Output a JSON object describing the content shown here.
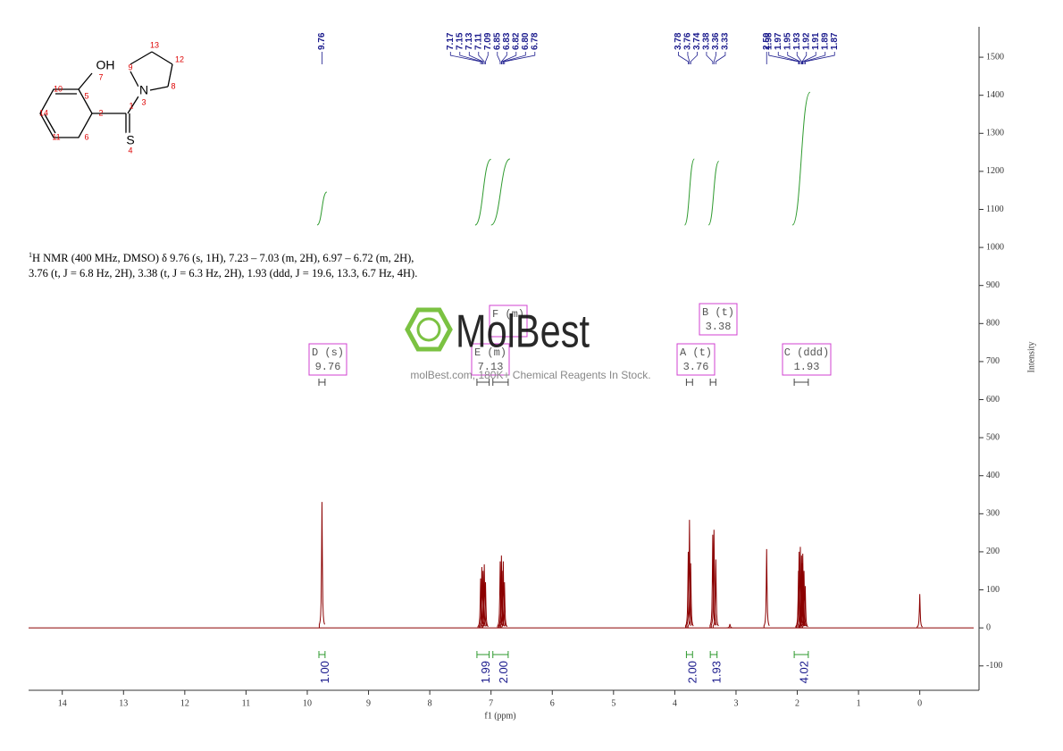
{
  "chart_data": {
    "type": "nmr",
    "xlabel": "f1 (ppm)",
    "ylabel": "Intensity",
    "xlim": [
      14.55,
      -0.88
    ],
    "xticks": [
      14,
      13,
      12,
      11,
      10,
      9,
      8,
      7,
      6,
      5,
      4,
      3,
      2,
      1,
      0
    ],
    "ylim": [
      -164,
      1580
    ],
    "yticks": [
      -100,
      0,
      100,
      200,
      300,
      400,
      500,
      600,
      700,
      800,
      900,
      1000,
      1100,
      1200,
      1300,
      1400,
      1500
    ],
    "color": "#8b0000",
    "peaks": {
      "x": [
        9.76,
        7.17,
        7.15,
        7.13,
        7.11,
        7.09,
        6.85,
        6.83,
        6.82,
        6.8,
        6.78,
        3.78,
        3.76,
        3.74,
        3.38,
        3.36,
        3.33,
        3.1,
        2.5,
        1.98,
        1.97,
        1.95,
        1.93,
        1.92,
        1.91,
        1.89,
        1.87,
        0.0
      ],
      "labels": [
        "9.76",
        "7.17",
        "7.15",
        "7.13",
        "7.11",
        "7.09",
        "6.85",
        "6.83",
        "6.82",
        "6.80",
        "6.78",
        "3.78",
        "3.76",
        "3.74",
        "3.38",
        "3.36",
        "3.33",
        null,
        "2.50",
        "1.98",
        "1.97",
        "1.95",
        "1.93",
        "1.92",
        "1.91",
        "1.89",
        "1.87",
        null
      ],
      "values": [
        331,
        130,
        160,
        150,
        167,
        120,
        175,
        190,
        150,
        175,
        120,
        200,
        284,
        170,
        245,
        258,
        180,
        10,
        207,
        150,
        200,
        213,
        190,
        170,
        195,
        150,
        110,
        89
      ]
    },
    "integrals": [
      {
        "range": [
          9.81,
          9.71
        ],
        "value": 1.0,
        "label": "1.00"
      },
      {
        "range": [
          7.23,
          7.03
        ],
        "value": 1.99,
        "label": "1.99"
      },
      {
        "range": [
          6.97,
          6.72
        ],
        "value": 2.0,
        "label": "2.00"
      },
      {
        "range": [
          3.81,
          3.71
        ],
        "value": 2.0,
        "label": "2.00"
      },
      {
        "range": [
          3.42,
          3.31
        ],
        "value": 1.93,
        "label": "1.93"
      },
      {
        "range": [
          2.05,
          1.82
        ],
        "value": 4.02,
        "label": "4.02"
      }
    ],
    "multiplets": [
      {
        "name": "D (s)",
        "shift": 9.76,
        "range": [
          9.81,
          9.71
        ]
      },
      {
        "name": "E (m)",
        "shift": 7.13,
        "range": [
          7.23,
          7.03
        ]
      },
      {
        "name": "F (m)",
        "range": [
          6.97,
          6.72
        ]
      },
      {
        "name": "A (t)",
        "shift": 3.76,
        "range": [
          3.81,
          3.71
        ]
      },
      {
        "name": "B (t)",
        "shift": 3.38,
        "range": [
          3.42,
          3.33
        ]
      },
      {
        "name": "C (ddd)",
        "shift": 1.93,
        "range": [
          2.05,
          1.82
        ]
      }
    ]
  },
  "description": {
    "sup": "1",
    "body": "H NMR (400 MHz, DMSO) δ 9.76 (s, 1H), 7.23 – 7.03 (m, 2H), 6.97 – 6.72 (m, 2H), 3.76 (t, J = 6.8 Hz, 2H), 3.38 (t, J = 6.3 Hz, 2H), 1.93 (ddd, J = 19.6, 13.3, 6.7 Hz, 4H)."
  },
  "structure": {
    "atoms": [
      "OH",
      "7",
      "5",
      "10",
      "14",
      "2",
      "1",
      "11",
      "6",
      "S",
      "4",
      "N",
      "3",
      "9",
      "13",
      "12",
      "8"
    ]
  },
  "watermark": {
    "brand": "MolBest",
    "tagline": "molBest.com, 180K+ Chemical Reagents In Stock."
  }
}
